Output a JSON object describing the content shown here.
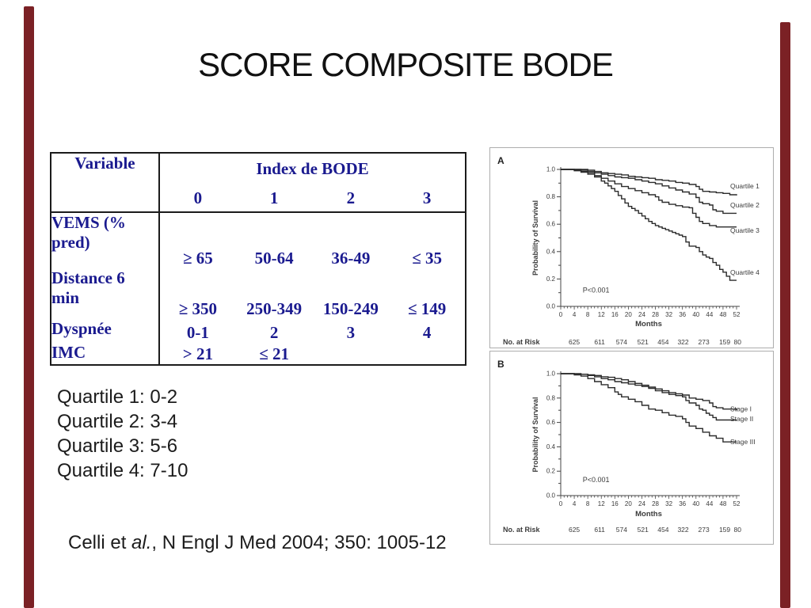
{
  "slide": {
    "title": "SCORE COMPOSITE BODE",
    "background": "#ffffff",
    "accent_bar_color": "#7b2125",
    "table_text_color": "#1a1a8f"
  },
  "table": {
    "header": {
      "variable": "Variable",
      "group": "Index de BODE",
      "scores": [
        "0",
        "1",
        "2",
        "3"
      ]
    },
    "rows": [
      {
        "label": "VEMS (%\npred)",
        "cells": [
          "≥ 65",
          "50-64",
          "36-49",
          "≤ 35"
        ]
      },
      {
        "label": "Distance 6\nmin",
        "cells": [
          "≥ 350",
          "250-349",
          "150-249",
          "≤ 149"
        ]
      },
      {
        "label": "Dyspnée",
        "cells": [
          "0-1",
          "2",
          "3",
          "4"
        ]
      },
      {
        "label": "IMC",
        "cells": [
          "> 21",
          "≤ 21",
          "",
          ""
        ]
      }
    ]
  },
  "quartiles": {
    "lines": [
      "Quartile 1: 0-2",
      "Quartile 2: 3-4",
      "Quartile 3: 5-6",
      "Quartile 4: 7-10"
    ]
  },
  "citation": {
    "prefix": "Celli et ",
    "italic": "al.",
    "suffix": ", N Engl J Med 2004; 350: 1005-12"
  },
  "chart_data": [
    {
      "type": "line",
      "panel": "A",
      "ylabel": "Probability of Survival",
      "xlabel": "Months",
      "xlim": [
        0,
        52
      ],
      "ylim": [
        0.0,
        1.0
      ],
      "xticks": [
        0,
        4,
        8,
        12,
        16,
        20,
        24,
        28,
        32,
        36,
        40,
        44,
        48,
        52
      ],
      "yticks": [
        0.0,
        0.2,
        0.4,
        0.6,
        0.8,
        1.0
      ],
      "annotation": "P<0.001",
      "risk_label": "No. at Risk",
      "risk_numbers": [
        "625",
        "611",
        "574",
        "521",
        "454",
        "322",
        "273",
        "159",
        "80"
      ],
      "risk_months": [
        4,
        11.5,
        18,
        24.3,
        30.3,
        36.2,
        42.3,
        48.5,
        52.3
      ],
      "curve_color": "#2b2b2b",
      "series": [
        {
          "name": "Quartile 1",
          "label_at": 0.88,
          "points": [
            [
              0,
              1.0
            ],
            [
              6,
              1.0
            ],
            [
              8,
              0.995
            ],
            [
              10,
              0.985
            ],
            [
              12,
              0.975
            ],
            [
              14,
              0.97
            ],
            [
              16,
              0.965
            ],
            [
              18,
              0.96
            ],
            [
              20,
              0.95
            ],
            [
              22,
              0.945
            ],
            [
              24,
              0.94
            ],
            [
              26,
              0.935
            ],
            [
              28,
              0.925
            ],
            [
              30,
              0.92
            ],
            [
              32,
              0.915
            ],
            [
              34,
              0.905
            ],
            [
              36,
              0.9
            ],
            [
              38,
              0.89
            ],
            [
              40,
              0.875
            ],
            [
              41,
              0.855
            ],
            [
              42,
              0.84
            ],
            [
              44,
              0.835
            ],
            [
              46,
              0.83
            ],
            [
              48,
              0.825
            ],
            [
              50,
              0.815
            ],
            [
              52,
              0.81
            ]
          ]
        },
        {
          "name": "Quartile 2",
          "label_at": 0.74,
          "points": [
            [
              0,
              1.0
            ],
            [
              6,
              0.995
            ],
            [
              8,
              0.985
            ],
            [
              10,
              0.975
            ],
            [
              12,
              0.965
            ],
            [
              14,
              0.955
            ],
            [
              16,
              0.945
            ],
            [
              18,
              0.94
            ],
            [
              20,
              0.935
            ],
            [
              22,
              0.925
            ],
            [
              24,
              0.915
            ],
            [
              26,
              0.905
            ],
            [
              28,
              0.895
            ],
            [
              30,
              0.88
            ],
            [
              32,
              0.865
            ],
            [
              34,
              0.85
            ],
            [
              36,
              0.835
            ],
            [
              38,
              0.82
            ],
            [
              40,
              0.795
            ],
            [
              41,
              0.76
            ],
            [
              42,
              0.75
            ],
            [
              44,
              0.74
            ],
            [
              45,
              0.705
            ],
            [
              46,
              0.695
            ],
            [
              48,
              0.68
            ],
            [
              52,
              0.68
            ]
          ]
        },
        {
          "name": "Quartile 3",
          "label_at": 0.555,
          "points": [
            [
              0,
              1.0
            ],
            [
              4,
              0.995
            ],
            [
              6,
              0.985
            ],
            [
              8,
              0.975
            ],
            [
              10,
              0.955
            ],
            [
              12,
              0.935
            ],
            [
              14,
              0.915
            ],
            [
              16,
              0.895
            ],
            [
              18,
              0.875
            ],
            [
              20,
              0.86
            ],
            [
              22,
              0.845
            ],
            [
              24,
              0.83
            ],
            [
              26,
              0.815
            ],
            [
              28,
              0.8
            ],
            [
              29,
              0.775
            ],
            [
              30,
              0.76
            ],
            [
              32,
              0.745
            ],
            [
              34,
              0.735
            ],
            [
              36,
              0.725
            ],
            [
              38,
              0.72
            ],
            [
              39,
              0.68
            ],
            [
              40,
              0.65
            ],
            [
              41,
              0.62
            ],
            [
              42,
              0.605
            ],
            [
              44,
              0.59
            ],
            [
              46,
              0.58
            ],
            [
              52,
              0.58
            ]
          ]
        },
        {
          "name": "Quartile 4",
          "label_at": 0.25,
          "points": [
            [
              0,
              1.0
            ],
            [
              4,
              0.99
            ],
            [
              6,
              0.98
            ],
            [
              8,
              0.965
            ],
            [
              10,
              0.945
            ],
            [
              12,
              0.915
            ],
            [
              13,
              0.9
            ],
            [
              14,
              0.88
            ],
            [
              15,
              0.86
            ],
            [
              16,
              0.84
            ],
            [
              17,
              0.81
            ],
            [
              18,
              0.785
            ],
            [
              19,
              0.755
            ],
            [
              20,
              0.73
            ],
            [
              21,
              0.715
            ],
            [
              22,
              0.7
            ],
            [
              23,
              0.68
            ],
            [
              24,
              0.66
            ],
            [
              25,
              0.64
            ],
            [
              26,
              0.62
            ],
            [
              27,
              0.605
            ],
            [
              28,
              0.59
            ],
            [
              29,
              0.58
            ],
            [
              30,
              0.57
            ],
            [
              31,
              0.56
            ],
            [
              32,
              0.55
            ],
            [
              33,
              0.54
            ],
            [
              34,
              0.53
            ],
            [
              35,
              0.52
            ],
            [
              36,
              0.51
            ],
            [
              37,
              0.47
            ],
            [
              38,
              0.44
            ],
            [
              40,
              0.43
            ],
            [
              41,
              0.4
            ],
            [
              42,
              0.375
            ],
            [
              43,
              0.36
            ],
            [
              44,
              0.35
            ],
            [
              45,
              0.32
            ],
            [
              46,
              0.3
            ],
            [
              47,
              0.27
            ],
            [
              48,
              0.25
            ],
            [
              49,
              0.22
            ],
            [
              50,
              0.19
            ],
            [
              52,
              0.19
            ]
          ]
        }
      ]
    },
    {
      "type": "line",
      "panel": "B",
      "ylabel": "Probability of Survival",
      "xlabel": "Months",
      "xlim": [
        0,
        52
      ],
      "ylim": [
        0.0,
        1.0
      ],
      "xticks": [
        0,
        4,
        8,
        12,
        16,
        20,
        24,
        28,
        32,
        36,
        40,
        44,
        48,
        52
      ],
      "yticks": [
        0.0,
        0.2,
        0.4,
        0.6,
        0.8,
        1.0
      ],
      "annotation": "P<0.001",
      "risk_label": "No. at Risk",
      "risk_numbers": [
        "625",
        "611",
        "574",
        "521",
        "454",
        "322",
        "273",
        "159",
        "80"
      ],
      "risk_months": [
        4,
        11.5,
        18,
        24.3,
        30.3,
        36.2,
        42.3,
        48.5,
        52.3
      ],
      "curve_color": "#2b2b2b",
      "series": [
        {
          "name": "Stage I",
          "label_at": 0.71,
          "points": [
            [
              0,
              1.0
            ],
            [
              6,
              0.995
            ],
            [
              8,
              0.99
            ],
            [
              10,
              0.985
            ],
            [
              12,
              0.975
            ],
            [
              14,
              0.97
            ],
            [
              16,
              0.96
            ],
            [
              18,
              0.95
            ],
            [
              20,
              0.935
            ],
            [
              22,
              0.92
            ],
            [
              24,
              0.905
            ],
            [
              26,
              0.89
            ],
            [
              28,
              0.875
            ],
            [
              30,
              0.86
            ],
            [
              32,
              0.845
            ],
            [
              34,
              0.835
            ],
            [
              36,
              0.825
            ],
            [
              38,
              0.8
            ],
            [
              40,
              0.79
            ],
            [
              42,
              0.78
            ],
            [
              44,
              0.76
            ],
            [
              45,
              0.73
            ],
            [
              46,
              0.72
            ],
            [
              48,
              0.71
            ],
            [
              52,
              0.7
            ]
          ]
        },
        {
          "name": "Stage II",
          "label_at": 0.63,
          "points": [
            [
              0,
              1.0
            ],
            [
              4,
              0.995
            ],
            [
              8,
              0.985
            ],
            [
              10,
              0.975
            ],
            [
              12,
              0.96
            ],
            [
              14,
              0.95
            ],
            [
              16,
              0.935
            ],
            [
              18,
              0.925
            ],
            [
              20,
              0.915
            ],
            [
              22,
              0.905
            ],
            [
              24,
              0.895
            ],
            [
              26,
              0.88
            ],
            [
              28,
              0.86
            ],
            [
              30,
              0.845
            ],
            [
              32,
              0.83
            ],
            [
              34,
              0.82
            ],
            [
              36,
              0.81
            ],
            [
              37,
              0.78
            ],
            [
              38,
              0.76
            ],
            [
              40,
              0.74
            ],
            [
              41,
              0.71
            ],
            [
              42,
              0.7
            ],
            [
              43,
              0.675
            ],
            [
              44,
              0.66
            ],
            [
              45,
              0.64
            ],
            [
              46,
              0.62
            ],
            [
              52,
              0.62
            ]
          ]
        },
        {
          "name": "Stage III",
          "label_at": 0.44,
          "points": [
            [
              0,
              1.0
            ],
            [
              4,
              0.99
            ],
            [
              6,
              0.98
            ],
            [
              8,
              0.96
            ],
            [
              10,
              0.935
            ],
            [
              12,
              0.91
            ],
            [
              14,
              0.885
            ],
            [
              16,
              0.85
            ],
            [
              17,
              0.83
            ],
            [
              18,
              0.81
            ],
            [
              20,
              0.79
            ],
            [
              22,
              0.77
            ],
            [
              24,
              0.74
            ],
            [
              26,
              0.71
            ],
            [
              28,
              0.7
            ],
            [
              30,
              0.68
            ],
            [
              32,
              0.66
            ],
            [
              34,
              0.65
            ],
            [
              36,
              0.63
            ],
            [
              37,
              0.6
            ],
            [
              38,
              0.57
            ],
            [
              40,
              0.55
            ],
            [
              42,
              0.52
            ],
            [
              44,
              0.49
            ],
            [
              46,
              0.47
            ],
            [
              48,
              0.44
            ],
            [
              52,
              0.44
            ]
          ]
        }
      ]
    }
  ]
}
